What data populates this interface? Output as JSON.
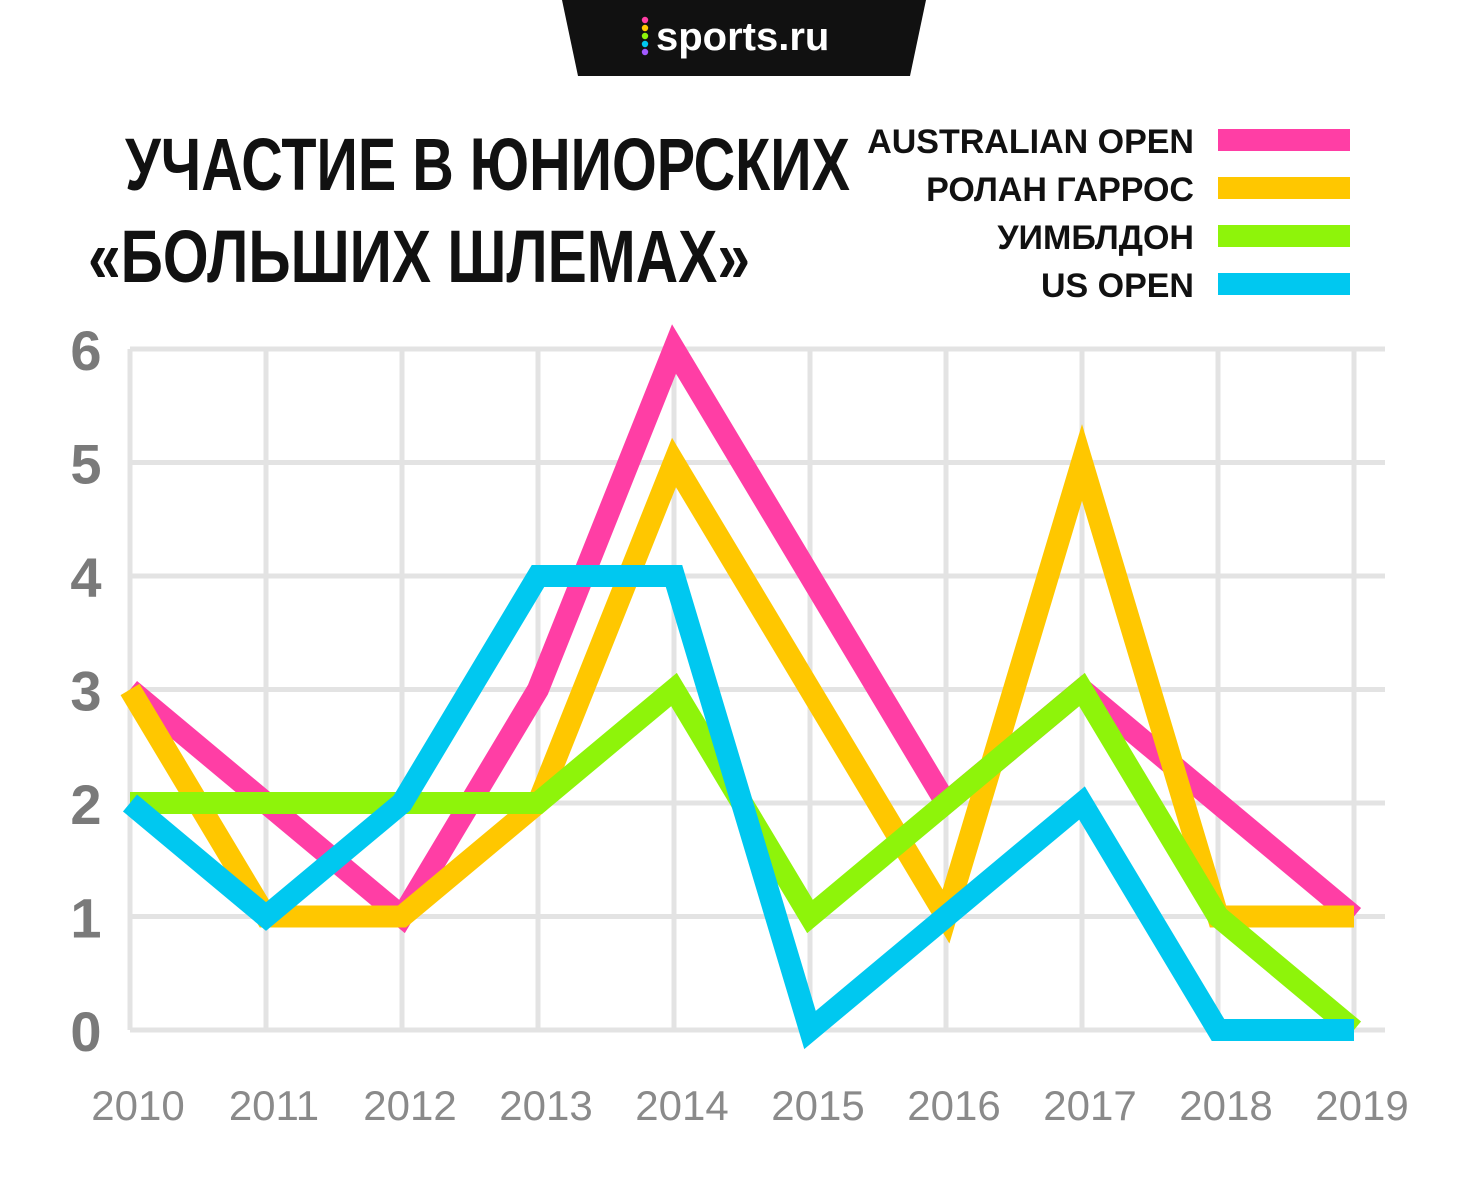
{
  "logo": {
    "text": "sports.ru",
    "dot_colors": [
      "#ff3ea5",
      "#ffc700",
      "#8ef40a",
      "#00c8f0",
      "#a259ff"
    ]
  },
  "chart_data": {
    "type": "line",
    "title_lines": [
      "УЧАСТИЕ В ЮНИОРСКИХ",
      "«БОЛЬШИХ ШЛЕМАХ»"
    ],
    "x": [
      "2010",
      "2011",
      "2012",
      "2013",
      "2014",
      "2015",
      "2016",
      "2017",
      "2018",
      "2019"
    ],
    "y_ticks": [
      "0",
      "1",
      "2",
      "3",
      "4",
      "5",
      "6"
    ],
    "ylim": [
      0,
      6
    ],
    "grid": true,
    "legend_position": "top-right",
    "series": [
      {
        "name": "AUSTRALIAN OPEN",
        "color": "#ff3ea5",
        "values": [
          3,
          2,
          1,
          3,
          6,
          4,
          2,
          3,
          2,
          1
        ]
      },
      {
        "name": "РОЛАН ГАРРОС",
        "color": "#ffc700",
        "values": [
          3,
          1,
          1,
          2,
          5,
          3,
          1,
          5,
          1,
          1
        ]
      },
      {
        "name": "УИМБЛДОН",
        "color": "#8ef40a",
        "values": [
          2,
          2,
          2,
          2,
          3,
          1,
          2,
          3,
          1,
          0
        ]
      },
      {
        "name": "US OPEN",
        "color": "#00c8f0",
        "values": [
          2,
          1,
          2,
          4,
          4,
          0,
          1,
          2,
          0,
          0
        ]
      }
    ]
  }
}
